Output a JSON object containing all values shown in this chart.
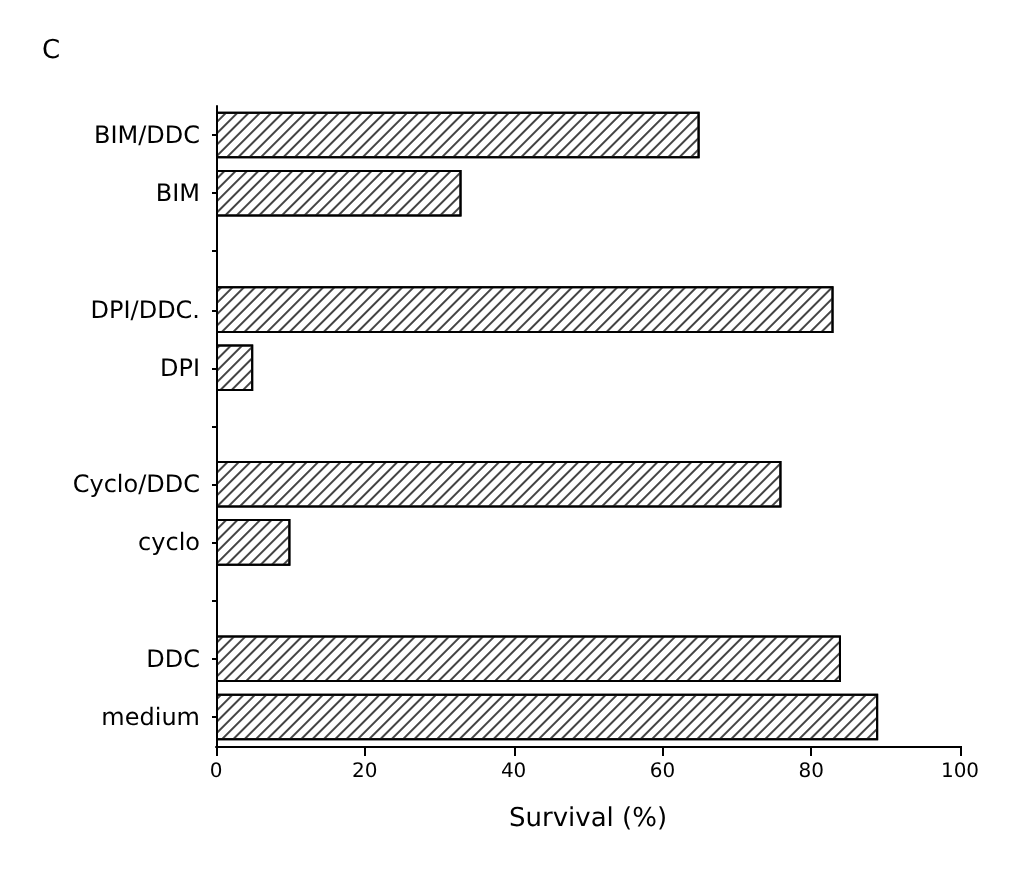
{
  "chart_data": {
    "type": "bar",
    "orientation": "horizontal",
    "title": "C",
    "xlabel": "Survival (%)",
    "categories": [
      "BIM/DDC",
      "BIM",
      null,
      "DPI/DDC.",
      "DPI",
      null,
      "Cyclo/DDC",
      "cyclo",
      null,
      "DDC",
      "medium"
    ],
    "values": [
      65,
      33,
      null,
      83,
      5,
      null,
      76,
      10,
      null,
      84,
      89
    ],
    "color": "#ffffff",
    "xlim": [
      0,
      100
    ],
    "xticks": [
      0,
      20,
      40,
      60,
      80,
      100
    ],
    "grid": false
  }
}
